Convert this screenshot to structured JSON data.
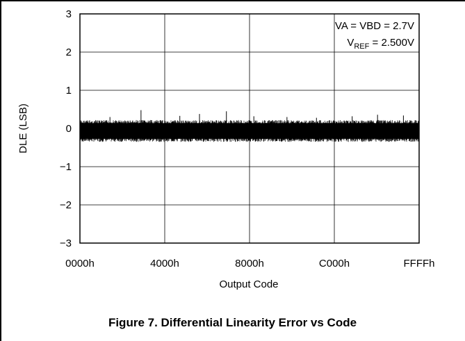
{
  "caption": "Figure 7. Differential Linearity Error vs Code",
  "chart_data": {
    "type": "line",
    "title": "",
    "xlabel": "Output Code",
    "ylabel": "DLE (LSB)",
    "x_tick_labels": [
      "0000h",
      "4000h",
      "8000h",
      "C000h",
      "FFFFh"
    ],
    "x_ticks": [
      0,
      16384,
      32768,
      49152,
      65535
    ],
    "xlim": [
      0,
      65535
    ],
    "y_tick_labels": [
      "3",
      "2",
      "1",
      "0",
      "−1",
      "−2",
      "−3"
    ],
    "y_ticks": [
      3,
      2,
      1,
      0,
      -1,
      -2,
      -3
    ],
    "ylim": [
      -3,
      3
    ],
    "grid": true,
    "annotations": {
      "line1": "VA = VBD = 2.7V",
      "line2_main": "V",
      "line2_sub": "REF",
      "line2_rest": " = 2.500V"
    },
    "series": [
      {
        "noise_band": {
          "x_start": 0,
          "x_end": 65535,
          "y_min": -0.35,
          "y_max": 0.22
        },
        "spikes": [
          {
            "x": 5800,
            "y": 0.3
          },
          {
            "x": 11800,
            "y": 0.48
          },
          {
            "x": 19300,
            "y": 0.33
          },
          {
            "x": 23100,
            "y": 0.38
          },
          {
            "x": 28300,
            "y": 0.45
          },
          {
            "x": 33600,
            "y": 0.32
          },
          {
            "x": 40000,
            "y": 0.3
          },
          {
            "x": 45700,
            "y": 0.28
          },
          {
            "x": 52600,
            "y": 0.32
          },
          {
            "x": 57500,
            "y": 0.36
          },
          {
            "x": 62500,
            "y": 0.34
          }
        ]
      }
    ]
  }
}
